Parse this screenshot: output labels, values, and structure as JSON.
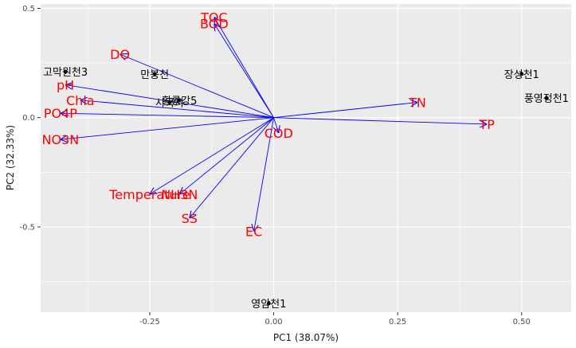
{
  "chart_data": {
    "type": "scatter",
    "subtype": "pca-biplot",
    "xlabel": "PC1 (38.07%)",
    "ylabel": "PC2 (32.33%)",
    "xlim": [
      -0.47,
      0.6
    ],
    "ylim": [
      -0.89,
      0.52
    ],
    "xticks": [
      -0.25,
      0.0,
      0.25,
      0.5
    ],
    "xtick_labels": [
      "-0.25",
      "0.00",
      "0.25",
      "0.50"
    ],
    "yticks": [
      -0.5,
      0.0,
      0.5
    ],
    "ytick_labels": [
      "-0.5",
      "0.0",
      "0.5"
    ],
    "grid": true,
    "colors": {
      "panel_background": "#ebebeb",
      "gridline": "#ffffff",
      "loading_arrow": "#0000ff",
      "variable_label": "#ff0000",
      "site_point": "#000000"
    },
    "loadings": [
      {
        "label": "TOC",
        "x": -0.12,
        "y": 0.46
      },
      {
        "label": "BOD",
        "x": -0.12,
        "y": 0.43
      },
      {
        "label": "DO",
        "x": -0.31,
        "y": 0.29
      },
      {
        "label": "pH",
        "x": -0.42,
        "y": 0.15
      },
      {
        "label": "Chla",
        "x": -0.39,
        "y": 0.08
      },
      {
        "label": "PO4P",
        "x": -0.43,
        "y": 0.02
      },
      {
        "label": "NO3N",
        "x": -0.43,
        "y": -0.1
      },
      {
        "label": "TN",
        "x": 0.29,
        "y": 0.07
      },
      {
        "label": "TP",
        "x": 0.43,
        "y": -0.03
      },
      {
        "label": "COD",
        "x": 0.01,
        "y": -0.07
      },
      {
        "label": "Temperature",
        "x": -0.25,
        "y": -0.35
      },
      {
        "label": "NH3N",
        "x": -0.19,
        "y": -0.35
      },
      {
        "label": "SS",
        "x": -0.17,
        "y": -0.46
      },
      {
        "label": "EC",
        "x": -0.04,
        "y": -0.52
      }
    ],
    "sites": [
      {
        "label": "고막원천3",
        "x": -0.42,
        "y": 0.21
      },
      {
        "label": "만봉천",
        "x": -0.24,
        "y": 0.2
      },
      {
        "label": "시목지",
        "x": -0.21,
        "y": 0.07
      },
      {
        "label": "황룡강5",
        "x": -0.19,
        "y": 0.08
      },
      {
        "label": "장성천1",
        "x": 0.5,
        "y": 0.2
      },
      {
        "label": "풍영정천1",
        "x": 0.55,
        "y": 0.09
      },
      {
        "label": "영암천1",
        "x": -0.01,
        "y": -0.85
      }
    ]
  }
}
